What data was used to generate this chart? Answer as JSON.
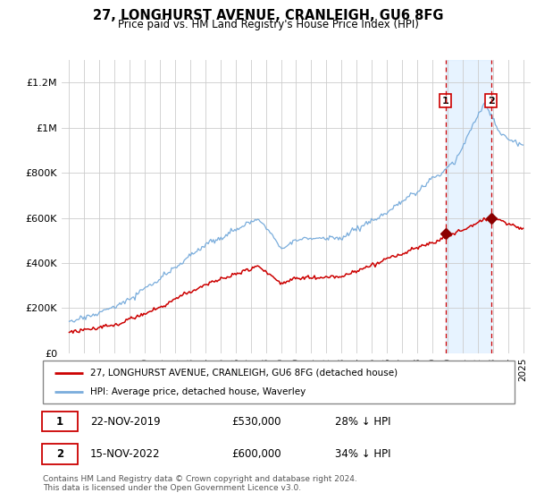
{
  "title": "27, LONGHURST AVENUE, CRANLEIGH, GU6 8FG",
  "subtitle": "Price paid vs. HM Land Registry's House Price Index (HPI)",
  "ylabel_ticks": [
    "£0",
    "£200K",
    "£400K",
    "£600K",
    "£800K",
    "£1M",
    "£1.2M"
  ],
  "ytick_values": [
    0,
    200000,
    400000,
    600000,
    800000,
    1000000,
    1200000
  ],
  "ylim": [
    0,
    1300000
  ],
  "legend_line1": "27, LONGHURST AVENUE, CRANLEIGH, GU6 8FG (detached house)",
  "legend_line2": "HPI: Average price, detached house, Waverley",
  "sale1_date": "22-NOV-2019",
  "sale1_price": "£530,000",
  "sale1_pct": "28% ↓ HPI",
  "sale2_date": "15-NOV-2022",
  "sale2_price": "£600,000",
  "sale2_pct": "34% ↓ HPI",
  "footnote": "Contains HM Land Registry data © Crown copyright and database right 2024.\nThis data is licensed under the Open Government Licence v3.0.",
  "hpi_color": "#7aaddc",
  "price_color": "#cc0000",
  "sale_marker_color": "#8b0000",
  "highlight_bg": "#ddeeff",
  "vline_color": "#cc0000",
  "background_color": "#ffffff",
  "sale1_year": 2019.88,
  "sale2_year": 2022.88,
  "sale1_value": 530000,
  "sale2_value": 600000,
  "xlim": [
    1994.5,
    2025.5
  ],
  "xtick_years": [
    1995,
    1996,
    1997,
    1998,
    1999,
    2000,
    2001,
    2002,
    2003,
    2004,
    2005,
    2006,
    2007,
    2008,
    2009,
    2010,
    2011,
    2012,
    2013,
    2014,
    2015,
    2016,
    2017,
    2018,
    2019,
    2020,
    2021,
    2022,
    2023,
    2024,
    2025
  ]
}
